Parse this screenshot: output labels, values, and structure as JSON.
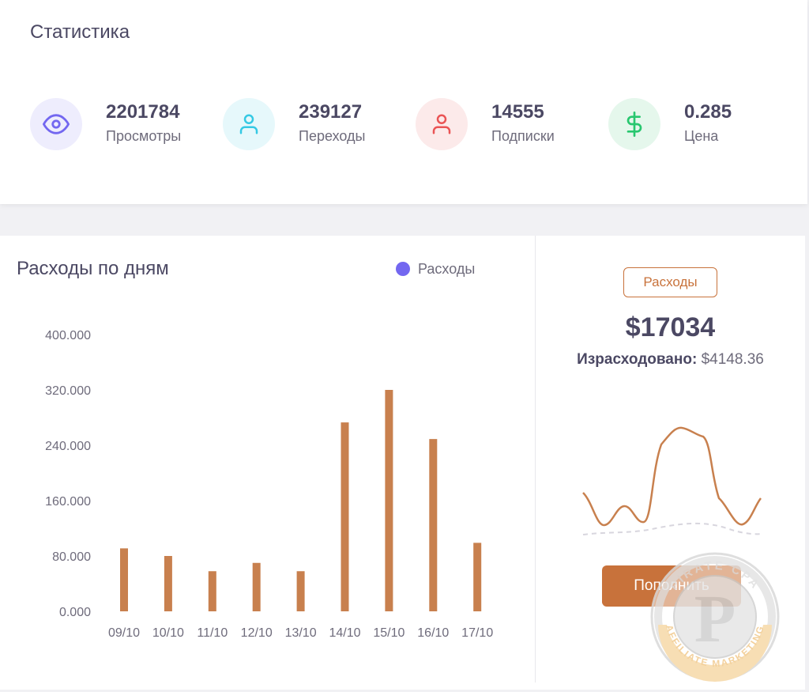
{
  "stats": {
    "title": "Статистика",
    "items": [
      {
        "value": "2201784",
        "label": "Просмотры",
        "icon": "eye-icon",
        "color": "#7367f0",
        "bg": "#eeedfd"
      },
      {
        "value": "239127",
        "label": "Переходы",
        "icon": "user-icon",
        "color": "#35c9e4",
        "bg": "#e6f8fb"
      },
      {
        "value": "14555",
        "label": "Подписки",
        "icon": "user-icon",
        "color": "#ea5455",
        "bg": "#fceaea"
      },
      {
        "value": "0.285",
        "label": "Цена",
        "icon": "dollar-icon",
        "color": "#28c76f",
        "bg": "#e5f7ec"
      }
    ]
  },
  "chart": {
    "title": "Расходы по дням",
    "legend_label": "Расходы",
    "legend_color": "#7367f0",
    "bar_color": "#c8804e"
  },
  "chart_data": {
    "type": "bar",
    "title": "Расходы по дням",
    "categories": [
      "09/10",
      "10/10",
      "11/10",
      "12/10",
      "13/10",
      "14/10",
      "15/10",
      "16/10",
      "17/10"
    ],
    "series": [
      {
        "name": "Расходы",
        "values": [
          91,
          80,
          58,
          70,
          58,
          273,
          320,
          249,
          99
        ]
      }
    ],
    "y_ticks": [
      "0.000",
      "80.000",
      "160.000",
      "240.000",
      "320.000",
      "400.000"
    ],
    "ylim": [
      0,
      400
    ],
    "legend": "top-right",
    "grid": false
  },
  "side": {
    "badge_label": "Расходы",
    "amount": "$17034",
    "spent_label": "Израсходовано:",
    "spent_value": "$4148.36",
    "button_label": "Пополнить",
    "accent_color": "#c8723b"
  },
  "watermark": {
    "text_top": "PIRATE CPA",
    "text_bottom": "AFFILIATE MARKETING",
    "letter": "P"
  }
}
